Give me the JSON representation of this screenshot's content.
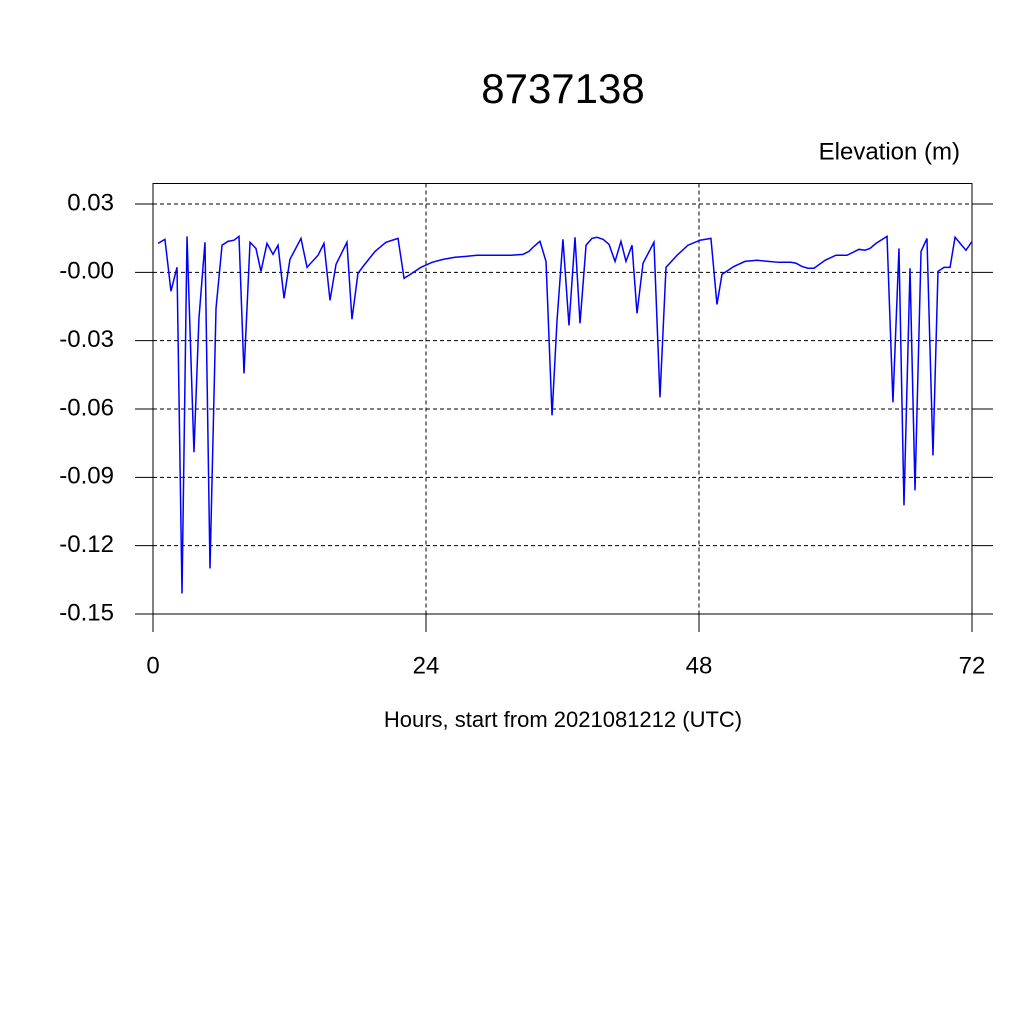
{
  "chart_data": {
    "type": "line",
    "title": "8737138",
    "y_axis_label": "Elevation (m)",
    "x_axis_label": "Hours, start from 2021081212 (UTC)",
    "xlim": [
      0,
      72
    ],
    "xticks": [
      0,
      24,
      48,
      72
    ],
    "ylim": [
      -0.15,
      0.039
    ],
    "yticks": [
      {
        "value": 0.03,
        "label": "0.03"
      },
      {
        "value": 0,
        "label": "-0.00"
      },
      -0.03,
      -0.06,
      -0.09,
      -0.12,
      -0.15
    ],
    "grid": true,
    "series": [
      {
        "color": "#0000ff",
        "x": [
          0.44,
          1.05,
          1.58,
          2.11,
          2.55,
          2.99,
          3.6,
          4.04,
          4.57,
          5.01,
          5.54,
          6.07,
          6.59,
          7.12,
          7.56,
          8.0,
          8.53,
          9.05,
          9.49,
          10.02,
          10.55,
          10.99,
          11.52,
          12.04,
          13.01,
          13.54,
          14.51,
          15.03,
          15.56,
          16.09,
          17.05,
          17.49,
          18.02,
          18.55,
          19.52,
          20.48,
          21.54,
          22.07,
          22.5,
          23.56,
          24.53,
          25.5,
          26.55,
          27.52,
          28.48,
          29.54,
          30.51,
          31.47,
          32.53,
          33.05,
          33.49,
          34.02,
          34.55,
          35.08,
          35.52,
          36.04,
          36.57,
          37.1,
          37.54,
          38.07,
          38.59,
          39.03,
          39.56,
          40.09,
          40.62,
          41.14,
          41.58,
          42.11,
          42.55,
          43.08,
          44.04,
          44.57,
          45.1,
          46.07,
          47.03,
          48.09,
          49.05,
          49.58,
          50.02,
          51.08,
          52.04,
          53.1,
          54.07,
          55.03,
          56.09,
          56.53,
          57.05,
          57.58,
          58.11,
          59.08,
          60.04,
          61.01,
          62.07,
          62.59,
          63.03,
          63.56,
          64.53,
          65.05,
          65.58,
          66.02,
          66.55,
          66.99,
          67.52,
          68.04,
          68.57,
          69.01,
          69.54,
          70.07,
          70.51,
          71.47,
          72.0
        ],
        "values": [
          0.0127,
          0.0145,
          -0.0083,
          0.0022,
          -0.141,
          0.0158,
          -0.079,
          -0.0202,
          0.0132,
          -0.13,
          -0.0158,
          0.0119,
          0.0136,
          0.0141,
          0.0158,
          -0.0444,
          0.0132,
          0.0105,
          0.0004,
          0.0127,
          0.0079,
          0.0119,
          -0.0114,
          0.0057,
          0.0149,
          0.0022,
          0.0075,
          0.0127,
          -0.0123,
          0.0035,
          0.0132,
          -0.0206,
          -0.0004,
          0.0031,
          0.0092,
          0.0132,
          0.0149,
          -0.0026,
          -0.0013,
          0.0022,
          0.0044,
          0.0057,
          0.0066,
          0.007,
          0.0075,
          0.0075,
          0.0075,
          0.0075,
          0.0079,
          0.0092,
          0.0114,
          0.0136,
          0.0048,
          -0.0628,
          -0.0211,
          0.0145,
          -0.0233,
          0.0154,
          -0.0224,
          0.0119,
          0.0149,
          0.0154,
          0.0145,
          0.0123,
          0.0048,
          0.0136,
          0.0048,
          0.0119,
          -0.018,
          0.004,
          0.0132,
          -0.0549,
          0.0022,
          0.0075,
          0.0119,
          0.0141,
          0.0149,
          -0.0141,
          -0.0009,
          0.0026,
          0.0048,
          0.0053,
          0.0048,
          0.0044,
          0.0044,
          0.004,
          0.0026,
          0.0018,
          0.0018,
          0.0053,
          0.0075,
          0.0075,
          0.0101,
          0.0097,
          0.0105,
          0.0127,
          0.0158,
          -0.0571,
          0.0105,
          -0.1023,
          0.0018,
          -0.0957,
          0.0092,
          0.0149,
          -0.0804,
          0.0004,
          0.0022,
          0.0022,
          0.0154,
          0.0097,
          0.0136
        ]
      }
    ]
  }
}
